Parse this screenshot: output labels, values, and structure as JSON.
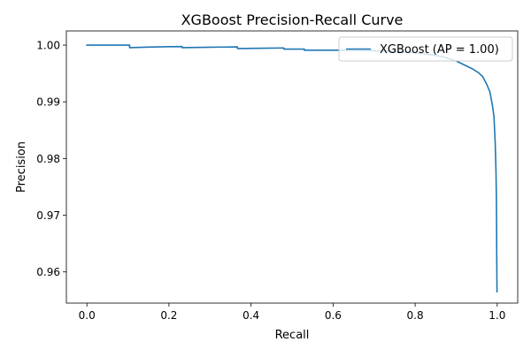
{
  "chart_data": {
    "type": "line",
    "title": "XGBoost Precision-Recall Curve",
    "xlabel": "Recall",
    "ylabel": "Precision",
    "xlim": [
      -0.05,
      1.05
    ],
    "ylim": [
      0.9545,
      1.0025
    ],
    "x_ticks": [
      0.0,
      0.2,
      0.4,
      0.6,
      0.8,
      1.0
    ],
    "x_tick_labels": [
      "0.0",
      "0.2",
      "0.4",
      "0.6",
      "0.8",
      "1.0"
    ],
    "y_ticks": [
      0.96,
      0.97,
      0.98,
      0.99,
      1.0
    ],
    "y_tick_labels": [
      "0.96",
      "0.97",
      "0.98",
      "0.99",
      "1.00"
    ],
    "grid": false,
    "legend": {
      "placement": "upper right",
      "entries": [
        {
          "label": "XGBoost (AP = 1.00)",
          "color": "#1f77b4"
        }
      ]
    },
    "series": [
      {
        "name": "XGBoost (AP = 1.00)",
        "color": "#1f77b4",
        "points": [
          [
            0.0,
            1.0
          ],
          [
            0.104,
            1.0
          ],
          [
            0.104,
            0.99955
          ],
          [
            0.15,
            0.99965
          ],
          [
            0.2,
            0.99972
          ],
          [
            0.232,
            0.99975
          ],
          [
            0.232,
            0.99955
          ],
          [
            0.3,
            0.99962
          ],
          [
            0.367,
            0.99968
          ],
          [
            0.367,
            0.9994
          ],
          [
            0.43,
            0.99945
          ],
          [
            0.48,
            0.9995
          ],
          [
            0.48,
            0.9993
          ],
          [
            0.53,
            0.9993
          ],
          [
            0.53,
            0.9991
          ],
          [
            0.6,
            0.9991
          ],
          [
            0.65,
            0.9991
          ],
          [
            0.7,
            0.999
          ],
          [
            0.75,
            0.9989
          ],
          [
            0.8,
            0.99865
          ],
          [
            0.84,
            0.9983
          ],
          [
            0.87,
            0.9979
          ],
          [
            0.9,
            0.9972
          ],
          [
            0.92,
            0.9965
          ],
          [
            0.94,
            0.9958
          ],
          [
            0.955,
            0.9951
          ],
          [
            0.965,
            0.9944
          ],
          [
            0.975,
            0.993
          ],
          [
            0.982,
            0.9918
          ],
          [
            0.988,
            0.9895
          ],
          [
            0.992,
            0.9875
          ],
          [
            0.995,
            0.983
          ],
          [
            0.997,
            0.9778
          ],
          [
            0.998,
            0.973
          ],
          [
            0.9985,
            0.968
          ],
          [
            0.999,
            0.9615
          ],
          [
            0.9995,
            0.9565
          ]
        ]
      }
    ]
  }
}
